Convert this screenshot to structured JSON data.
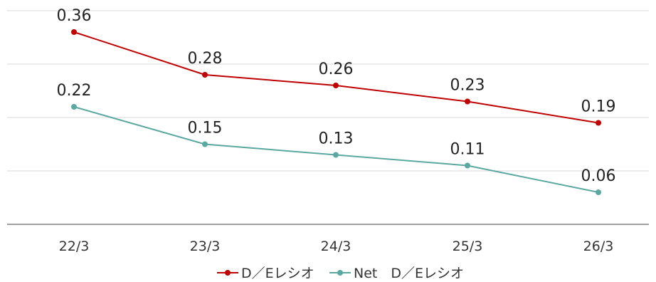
{
  "chart_data": {
    "type": "line",
    "categories": [
      "22/3",
      "23/3",
      "24/3",
      "25/3",
      "26/3"
    ],
    "ylim": [
      0,
      0.4
    ],
    "grid": true,
    "legend_position": "bottom",
    "series": [
      {
        "name": "D／Eレシオ",
        "color": "#c00000",
        "values": [
          0.36,
          0.28,
          0.26,
          0.23,
          0.19
        ],
        "labels": [
          "0.36",
          "0.28",
          "0.26",
          "0.23",
          "0.19"
        ]
      },
      {
        "name": "Net　D／Eレシオ",
        "color": "#5ba8a0",
        "values": [
          0.22,
          0.15,
          0.13,
          0.11,
          0.06
        ],
        "labels": [
          "0.22",
          "0.15",
          "0.13",
          "0.11",
          "0.06"
        ]
      }
    ]
  }
}
